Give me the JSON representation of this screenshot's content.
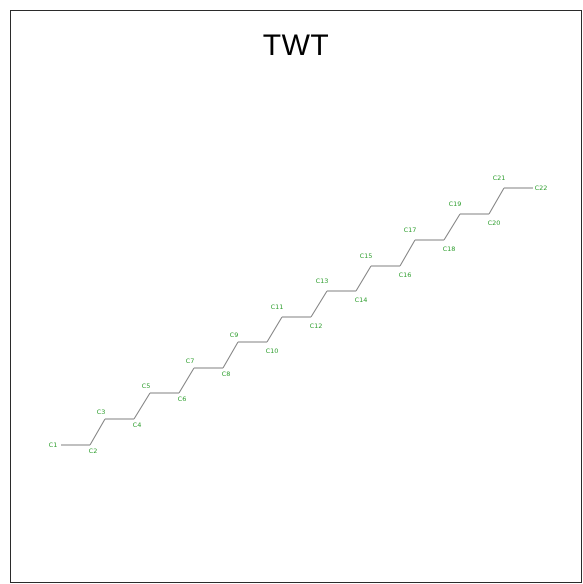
{
  "title": "TWT",
  "colors": {
    "bond": "#808080",
    "atom_label": "#2e9e2e",
    "frame_border": "#2b2b2b",
    "title": "#000000"
  },
  "molecule": {
    "atoms": [
      "C1",
      "C2",
      "C3",
      "C4",
      "C5",
      "C6",
      "C7",
      "C8",
      "C9",
      "C10",
      "C11",
      "C12",
      "C13",
      "C14",
      "C15",
      "C16",
      "C17",
      "C18",
      "C19",
      "C20",
      "C21",
      "C22"
    ],
    "bonds": [
      [
        "C1",
        "C2"
      ],
      [
        "C2",
        "C3"
      ],
      [
        "C3",
        "C4"
      ],
      [
        "C4",
        "C5"
      ],
      [
        "C5",
        "C6"
      ],
      [
        "C6",
        "C7"
      ],
      [
        "C7",
        "C8"
      ],
      [
        "C8",
        "C9"
      ],
      [
        "C9",
        "C10"
      ],
      [
        "C10",
        "C11"
      ],
      [
        "C11",
        "C12"
      ],
      [
        "C12",
        "C13"
      ],
      [
        "C13",
        "C14"
      ],
      [
        "C14",
        "C15"
      ],
      [
        "C15",
        "C16"
      ],
      [
        "C16",
        "C17"
      ],
      [
        "C17",
        "C18"
      ],
      [
        "C18",
        "C19"
      ],
      [
        "C19",
        "C20"
      ],
      [
        "C20",
        "C21"
      ],
      [
        "C21",
        "C22"
      ]
    ]
  }
}
